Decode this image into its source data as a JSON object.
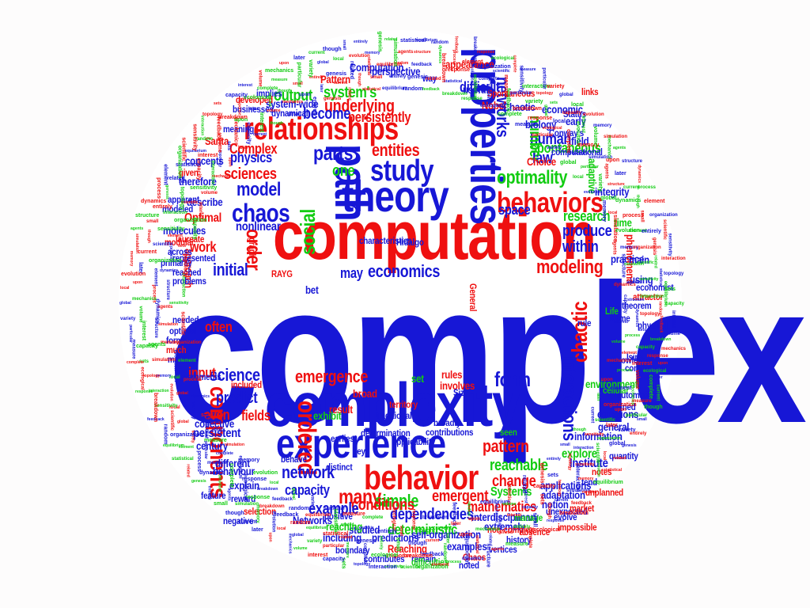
{
  "palette": {
    "red": "#ef1010",
    "blue": "#1717d6",
    "green": "#12cc12",
    "background": "#ffffff"
  },
  "cloud": {
    "words": [
      "complex",
      "computation",
      "complexity",
      "experience",
      "behavior",
      "theory",
      "properties",
      "path",
      "relationships",
      "chaos",
      "study",
      "behaviors",
      "optimality",
      "networks",
      "ordered",
      "components",
      "chaotic",
      "modeling",
      "interactions",
      "emergence",
      "science",
      "social",
      "economics",
      "pattern",
      "reachable",
      "change",
      "many",
      "simple",
      "emergent",
      "network",
      "form",
      "produce",
      "within",
      "research",
      "initial",
      "order",
      "parts",
      "model",
      "one",
      "entities",
      "sciences",
      "physics",
      "Complex",
      "underlying",
      "output",
      "system's",
      "become",
      "human",
      "number",
      "law",
      "spontaneous",
      "space",
      "Systems",
      "dependencies",
      "deterministic",
      "conditions",
      "capacity",
      "predict",
      "fields",
      "often",
      "input",
      "mathematics",
      "explore",
      "Institute",
      "even",
      "persistent",
      "collective",
      "different",
      "explain",
      "example",
      "result",
      "exhibit",
      "rules",
      "terms",
      "general",
      "information",
      "equations",
      "defined",
      "cellular",
      "environment",
      "Choice",
      "biology",
      "computational",
      "persistently",
      "difficult",
      "Nobel",
      "Chaotic",
      "Spontaneous",
      "nonlinear",
      "Optimal",
      "work",
      "approach",
      "problems",
      "needed",
      "optimal",
      "forms",
      "much",
      "make",
      "applications",
      "adaptation",
      "notion",
      "studied",
      "reaching",
      "predictions",
      "Reaching",
      "Networks",
      "including",
      "self-organization",
      "extremely",
      "interdisciplinary",
      "examples",
      "vertices",
      "boundary",
      "contributes",
      "remain",
      "century",
      "behaviour",
      "capacity",
      "physical",
      "automation",
      "knowledge",
      "computers",
      "practice",
      "time",
      "using",
      "economist",
      "attractor",
      "theorem",
      "phenomena",
      "main",
      "integrity",
      "adaptive",
      "field",
      "early",
      "economic",
      "appearance",
      "perspective",
      "Pattern",
      "Computation",
      "system-wide",
      "dynamical",
      "implies",
      "developed",
      "businesses",
      "meaning",
      "describe",
      "therefore",
      "concepts",
      "given",
      "apparent",
      "molecules",
      "modeled",
      "laureate",
      "reached",
      "across",
      "represented",
      "modular",
      "primarily",
      "characteristics",
      "Hidalgo",
      "contributions",
      "applicability",
      "determination",
      "broad",
      "involves",
      "Size",
      "set",
      "may",
      "territory",
      "traditional",
      "Santa",
      "Conway's",
      "Status",
      "rule",
      "bet",
      "RAYG",
      "graph",
      "useful",
      "way",
      "links",
      "Game",
      "Life",
      "Ising",
      "General",
      "impossible",
      "quantity",
      "notes",
      "tend",
      "unexpected",
      "unplanned",
      "history",
      "absence",
      "market",
      "evolve",
      "manage",
      "non-complex",
      "Chaos",
      "earliest",
      "key",
      "included",
      "governments",
      "feature",
      "negative",
      "positive",
      "reward",
      "distinct",
      "selection",
      "behave",
      "noted",
      "difficulties",
      "seen",
      "broadly",
      "interest",
      "volume",
      "mechanics",
      "upon",
      "later",
      "current",
      "though",
      "small",
      "entirely",
      "genesis",
      "related",
      "statistical",
      "equilibrium",
      "random",
      "feedback",
      "breakdown",
      "response",
      "ecological",
      "complete",
      "measure",
      "particular",
      "variety",
      "global",
      "local",
      "evolution",
      "memory",
      "simulation",
      "agents",
      "structure",
      "dynamics",
      "process",
      "element",
      "organization",
      "scientific",
      "sensitivity",
      "interaction",
      "topology",
      "sets"
    ]
  }
}
